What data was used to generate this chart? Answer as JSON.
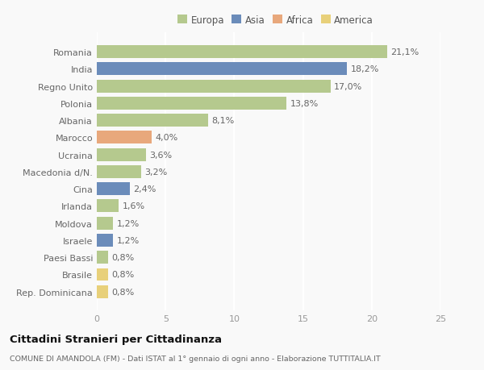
{
  "categories": [
    "Romania",
    "India",
    "Regno Unito",
    "Polonia",
    "Albania",
    "Marocco",
    "Ucraina",
    "Macedonia d/N.",
    "Cina",
    "Irlanda",
    "Moldova",
    "Israele",
    "Paesi Bassi",
    "Brasile",
    "Rep. Dominicana"
  ],
  "values": [
    21.1,
    18.2,
    17.0,
    13.8,
    8.1,
    4.0,
    3.6,
    3.2,
    2.4,
    1.6,
    1.2,
    1.2,
    0.8,
    0.8,
    0.8
  ],
  "labels": [
    "21,1%",
    "18,2%",
    "17,0%",
    "13,8%",
    "8,1%",
    "4,0%",
    "3,6%",
    "3,2%",
    "2,4%",
    "1,6%",
    "1,2%",
    "1,2%",
    "0,8%",
    "0,8%",
    "0,8%"
  ],
  "continents": [
    "Europa",
    "Asia",
    "Europa",
    "Europa",
    "Europa",
    "Africa",
    "Europa",
    "Europa",
    "Asia",
    "Europa",
    "Europa",
    "Asia",
    "Europa",
    "America",
    "America"
  ],
  "colors": {
    "Europa": "#b5c98e",
    "Asia": "#6b8cba",
    "Africa": "#e8a87c",
    "America": "#e8d07a"
  },
  "legend_order": [
    "Europa",
    "Asia",
    "Africa",
    "America"
  ],
  "xlim": [
    0,
    25
  ],
  "xticks": [
    0,
    5,
    10,
    15,
    20,
    25
  ],
  "title": "Cittadini Stranieri per Cittadinanza",
  "subtitle": "COMUNE DI AMANDOLA (FM) - Dati ISTAT al 1° gennaio di ogni anno - Elaborazione TUTTITALIA.IT",
  "bg_color": "#f9f9f9",
  "grid_color": "#ffffff",
  "bar_height": 0.75,
  "label_fontsize": 8.0,
  "ytick_fontsize": 8.0,
  "xtick_fontsize": 8.0
}
